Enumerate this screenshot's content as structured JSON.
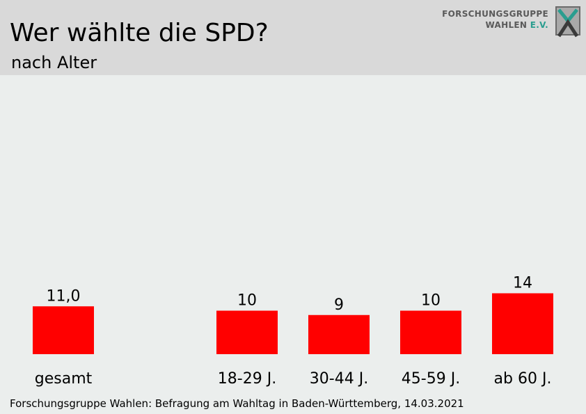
{
  "header": {
    "title": "Wer wählte die SPD?",
    "subtitle": "nach Alter"
  },
  "logo": {
    "line1": "FORSCHUNGSGRUPPE",
    "line2": "WAHLEN",
    "line2_suffix": "E.V."
  },
  "footer": {
    "source": "Forschungsgruppe Wahlen: Befragung am Wahltag in Baden-Württemberg, 14.03.2021"
  },
  "colors": {
    "bar": "#ff0000",
    "header_bg": "#d9d9d9",
    "plot_bg": "#ebeeed",
    "logo_accent": "#2a9d8f"
  },
  "chart_data": {
    "type": "bar",
    "categories": [
      "gesamt",
      "18-29 J.",
      "30-44 J.",
      "45-59 J.",
      "ab 60 J."
    ],
    "values": [
      11.0,
      10,
      9,
      10,
      14
    ],
    "value_labels": [
      "11,0",
      "10",
      "9",
      "10",
      "14"
    ],
    "title": "Wer wählte die SPD?",
    "subtitle": "nach Alter",
    "xlabel": "",
    "ylabel": "",
    "grid": false,
    "legend": "none"
  }
}
